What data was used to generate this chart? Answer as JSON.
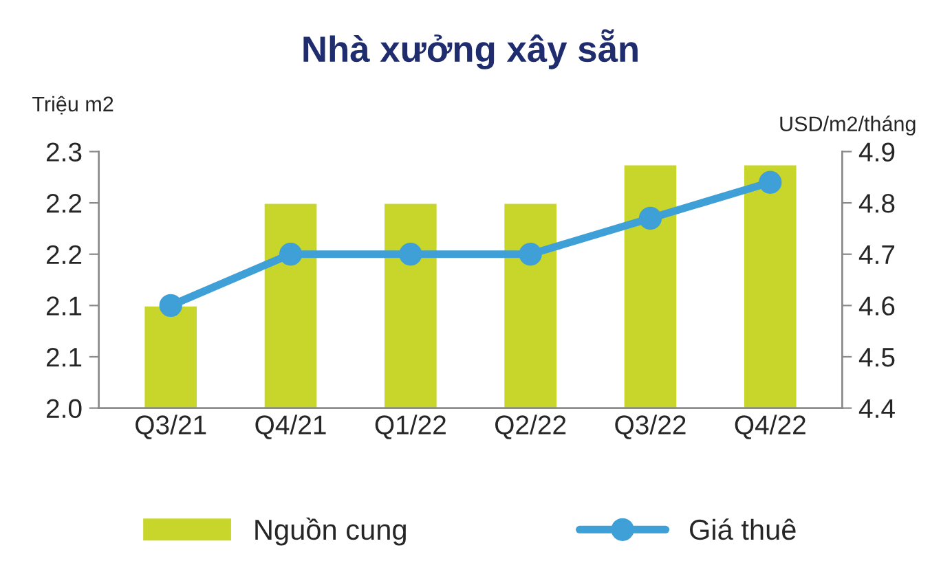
{
  "chart_data": {
    "type": "bar",
    "title": "Nhà xưởng xây sẵn",
    "ylabel": "Triệu m2",
    "y2label": "USD/m2/tháng",
    "categories": [
      "Q3/21",
      "Q4/21",
      "Q1/22",
      "Q2/22",
      "Q3/22",
      "Q4/22"
    ],
    "series": [
      {
        "name": "Nguồn cung",
        "color": "#c8d62b",
        "values": [
          2.12,
          2.24,
          2.24,
          2.24,
          2.285,
          2.285
        ]
      },
      {
        "name": "Giá thuê",
        "type": "line",
        "axis": "y2",
        "color": "#3fa0d8",
        "marker": "circle",
        "values": [
          4.6,
          4.7,
          4.7,
          4.7,
          4.77,
          4.84
        ]
      }
    ],
    "ylim": [
      2.0,
      2.3
    ],
    "yticks": [
      {
        "value": 2.0,
        "label": "2.0"
      },
      {
        "value": 2.06,
        "label": "2.1"
      },
      {
        "value": 2.12,
        "label": "2.1"
      },
      {
        "value": 2.18,
        "label": "2.2"
      },
      {
        "value": 2.24,
        "label": "2.2"
      },
      {
        "value": 2.3,
        "label": "2.3"
      }
    ],
    "y2lim": [
      4.4,
      4.9
    ],
    "y2ticks": [
      4.4,
      4.5,
      4.6,
      4.7,
      4.8,
      4.9
    ],
    "grid": false,
    "legend": "bottom"
  }
}
